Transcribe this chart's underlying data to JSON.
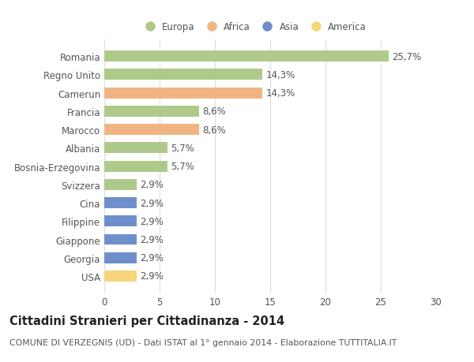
{
  "countries": [
    "Romania",
    "Regno Unito",
    "Camerun",
    "Francia",
    "Marocco",
    "Albania",
    "Bosnia-Erzegovina",
    "Svizzera",
    "Cina",
    "Filippine",
    "Giappone",
    "Georgia",
    "USA"
  ],
  "values": [
    25.7,
    14.3,
    14.3,
    8.6,
    8.6,
    5.7,
    5.7,
    2.9,
    2.9,
    2.9,
    2.9,
    2.9,
    2.9
  ],
  "labels": [
    "25,7%",
    "14,3%",
    "14,3%",
    "8,6%",
    "8,6%",
    "5,7%",
    "5,7%",
    "2,9%",
    "2,9%",
    "2,9%",
    "2,9%",
    "2,9%",
    "2,9%"
  ],
  "continents": [
    "Europa",
    "Europa",
    "Africa",
    "Europa",
    "Africa",
    "Europa",
    "Europa",
    "Europa",
    "Asia",
    "Asia",
    "Asia",
    "Asia",
    "America"
  ],
  "colors": {
    "Europa": "#aec98a",
    "Africa": "#f0b482",
    "Asia": "#6e8fc9",
    "America": "#f5d67a"
  },
  "legend_order": [
    "Europa",
    "Africa",
    "Asia",
    "America"
  ],
  "title_main": "Cittadini Stranieri per Cittadinanza - 2014",
  "title_sub": "COMUNE DI VERZEGNIS (UD) - Dati ISTAT al 1° gennaio 2014 - Elaborazione TUTTITALIA.IT",
  "xlim": [
    0,
    30
  ],
  "xticks": [
    0,
    5,
    10,
    15,
    20,
    25,
    30
  ],
  "background_color": "#ffffff",
  "grid_color": "#dddddd",
  "text_color": "#555555",
  "label_fontsize": 8.5,
  "tick_fontsize": 8.5,
  "title_main_fontsize": 10.5,
  "title_sub_fontsize": 7.8
}
